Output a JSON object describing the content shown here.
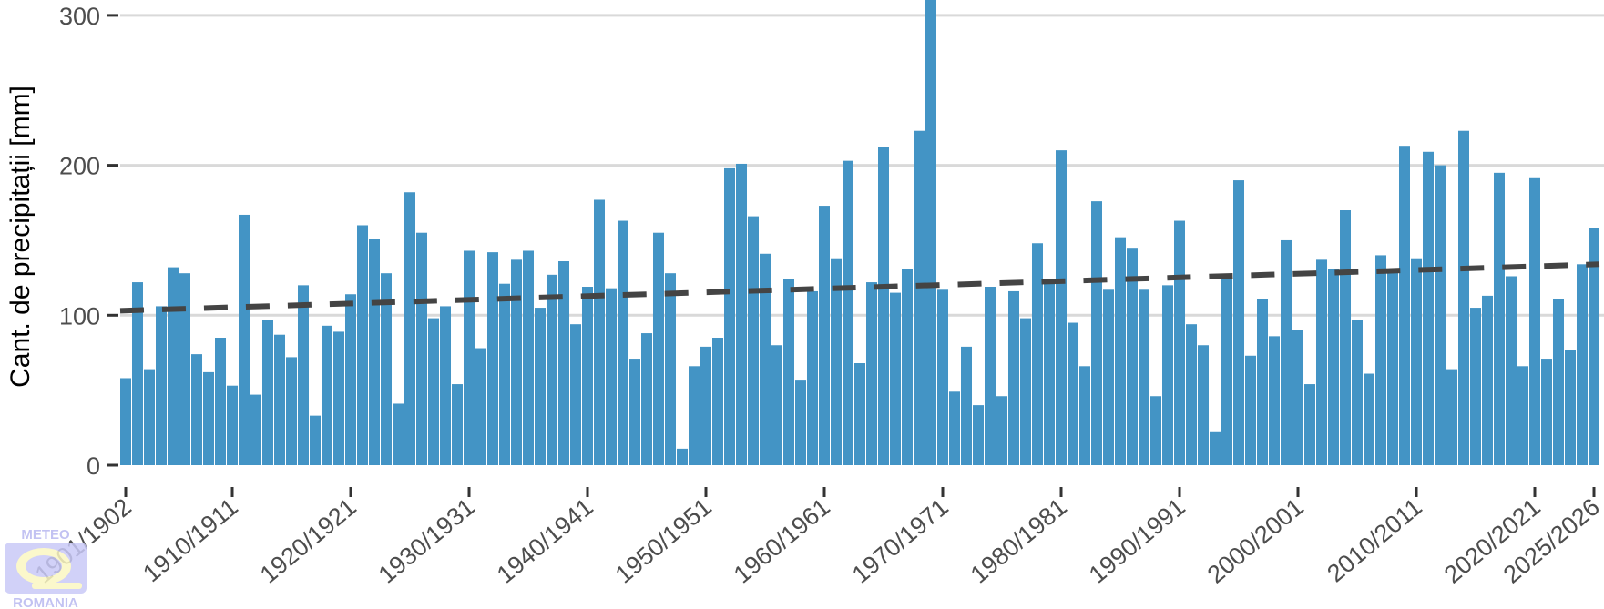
{
  "chart_data": {
    "type": "bar",
    "title": "",
    "xlabel": "",
    "ylabel": "Cant. de precipitații [mm]",
    "ylim": [
      0,
      310
    ],
    "yticks": [
      0,
      100,
      200,
      300
    ],
    "grid": "horizontal",
    "bar_color": "#4394c5",
    "trend_color": "#444444",
    "first_season_start": 1901,
    "xtick_labels": [
      "1901/1902",
      "1910/1911",
      "1920/1921",
      "1930/1931",
      "1940/1941",
      "1950/1951",
      "1960/1961",
      "1970/1971",
      "1980/1981",
      "1990/1991",
      "2000/2001",
      "2010/2011",
      "2020/2021",
      "2025/2026"
    ],
    "values": [
      58,
      122,
      64,
      106,
      132,
      128,
      74,
      62,
      85,
      53,
      167,
      47,
      97,
      87,
      72,
      120,
      33,
      93,
      89,
      114,
      160,
      151,
      128,
      41,
      182,
      155,
      98,
      106,
      54,
      143,
      78,
      142,
      121,
      137,
      143,
      105,
      127,
      136,
      94,
      119,
      177,
      118,
      163,
      71,
      88,
      155,
      128,
      11,
      66,
      79,
      85,
      198,
      201,
      166,
      141,
      80,
      124,
      57,
      116,
      173,
      138,
      203,
      68,
      122,
      212,
      115,
      131,
      223,
      320,
      117,
      49,
      79,
      40,
      119,
      46,
      116,
      98,
      148,
      123,
      210,
      95,
      66,
      176,
      117,
      152,
      145,
      117,
      46,
      120,
      163,
      94,
      80,
      22,
      124,
      190,
      73,
      111,
      86,
      150,
      90,
      54,
      137,
      131,
      170,
      97,
      61,
      140,
      130,
      213,
      138,
      209,
      200,
      64,
      223,
      105,
      113,
      195,
      126,
      66,
      192,
      71,
      111,
      77,
      134,
      158
    ],
    "trend": {
      "type": "linear",
      "start": 103,
      "end": 134
    }
  },
  "logo": {
    "top": "METEO",
    "bottom": "ROMANIA"
  }
}
